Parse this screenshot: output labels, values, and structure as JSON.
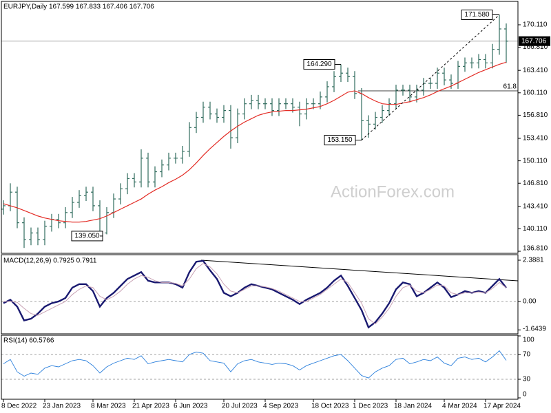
{
  "chart_data": [
    {
      "type": "ohlc",
      "title": "EURJPY,Daily  167.599 167.833 167.406 167.706",
      "watermark": "ActionForex.com",
      "color": "#2f6b5c",
      "categories": [
        "8 Dec 2022",
        null,
        null,
        null,
        null,
        null,
        "23 Jan 2023",
        null,
        null,
        null,
        null,
        null,
        null,
        "8 Mar 2023",
        null,
        null,
        null,
        null,
        null,
        "21 Apr 2023",
        null,
        null,
        null,
        null,
        null,
        "6 Jun 2023",
        null,
        null,
        null,
        null,
        null,
        null,
        "20 Jul 2023",
        null,
        null,
        null,
        null,
        null,
        "4 Sep 2023",
        null,
        null,
        null,
        null,
        null,
        null,
        "18 Oct 2023",
        null,
        null,
        null,
        null,
        null,
        "1 Dec 2023",
        null,
        null,
        null,
        null,
        null,
        "18 Jan 2024",
        null,
        null,
        null,
        null,
        null,
        null,
        "4 Mar 2024",
        null,
        null,
        null,
        null,
        null,
        "17 Apr 2024",
        null,
        null,
        null
      ],
      "open": [
        143,
        143.5,
        145.5,
        141,
        138.5,
        139.5,
        138.5,
        140.5,
        141.5,
        141,
        142.5,
        144,
        145,
        145.5,
        143.5,
        139.5,
        142.5,
        144.5,
        146,
        147.5,
        147,
        150.5,
        147,
        148.5,
        149.5,
        150.5,
        150.5,
        151.5,
        155,
        156.5,
        158,
        157,
        156.5,
        157.5,
        153.5,
        157,
        158.5,
        159,
        158.5,
        158.5,
        157.5,
        158.5,
        158.5,
        158,
        157,
        158.5,
        158.5,
        159.5,
        161,
        162.5,
        163,
        162.5,
        160,
        156,
        155.5,
        156.5,
        157.5,
        158.5,
        160.5,
        160.5,
        159.5,
        160.5,
        161.5,
        161.5,
        163,
        162,
        161.5,
        164,
        164.5,
        164.5,
        165,
        164.5,
        166.5,
        169.5
      ],
      "high": [
        144.3,
        146.8,
        146.3,
        141.8,
        140.3,
        140.3,
        141.3,
        142.3,
        142.3,
        143.3,
        144.8,
        145.8,
        146.3,
        146.3,
        144.3,
        143.3,
        145.3,
        146.8,
        148.3,
        148.3,
        151.8,
        151.3,
        149.3,
        150.3,
        151.3,
        151.3,
        152.3,
        155.8,
        157.3,
        158.8,
        158.8,
        157.8,
        158.3,
        158.3,
        157.8,
        159.3,
        159.8,
        159.8,
        159.3,
        159.3,
        159.3,
        159.3,
        159.3,
        158.8,
        159.3,
        159.3,
        160.3,
        161.8,
        163.3,
        164.29,
        163.8,
        163.3,
        160.8,
        156.8,
        157.3,
        158.3,
        159.3,
        161.3,
        161.3,
        161.3,
        161.3,
        162.3,
        162.3,
        163.8,
        163.8,
        162.8,
        164.8,
        165.3,
        165.3,
        165.8,
        165.8,
        167.3,
        171.58,
        170.3
      ],
      "low": [
        142.2,
        142.7,
        140.2,
        137.3,
        137.7,
        137.7,
        137.7,
        139.7,
        140.2,
        140.2,
        141.7,
        143.2,
        144.2,
        142.7,
        139.05,
        139.3,
        141.7,
        143.7,
        145.2,
        146.2,
        146.2,
        146.2,
        146.2,
        147.7,
        148.7,
        149.7,
        149.7,
        150.7,
        154.2,
        155.7,
        156.2,
        155.7,
        155.7,
        151.9,
        152.7,
        156.2,
        157.7,
        157.7,
        157.7,
        156.7,
        156.7,
        157.7,
        157.2,
        155.2,
        156.2,
        157.7,
        157.7,
        158.7,
        160.2,
        161.7,
        161.7,
        159.2,
        153.15,
        153.5,
        154.7,
        155.7,
        156.7,
        157.7,
        159.7,
        158.7,
        158.7,
        159.7,
        160.7,
        160.7,
        161.2,
        160.7,
        160.7,
        163.2,
        163.7,
        163.7,
        163.7,
        163.7,
        165.7,
        164.5
      ],
      "close": [
        143.5,
        145.5,
        141,
        138.5,
        139.5,
        138.5,
        140.5,
        141.5,
        141,
        142.5,
        144,
        145,
        145.5,
        143.5,
        139.5,
        142.5,
        144.5,
        146,
        147.5,
        147,
        150.5,
        147,
        148.5,
        149.5,
        150.5,
        150.5,
        151.5,
        155,
        156.5,
        158,
        157,
        156.5,
        157.5,
        153.5,
        157,
        158.5,
        159,
        158.5,
        158.5,
        157.5,
        158.5,
        158.5,
        158,
        157,
        158.5,
        158.5,
        159.5,
        161,
        162.5,
        163,
        162.5,
        160,
        156,
        155.5,
        156.5,
        157.5,
        158.5,
        160.5,
        160.5,
        159.5,
        160.5,
        161.5,
        161.5,
        163,
        162,
        161.5,
        164,
        164.5,
        164.5,
        165,
        164.5,
        166.5,
        169.5,
        167.706
      ],
      "ma": {
        "color": "#e32b24",
        "values": [
          143.8,
          143.5,
          143.2,
          142.8,
          142.4,
          142,
          141.7,
          141.5,
          141.3,
          141.2,
          141.1,
          141.1,
          141.2,
          141.4,
          141.6,
          142,
          142.5,
          143,
          143.5,
          144,
          144.5,
          145.2,
          145.8,
          146.3,
          146.9,
          147.4,
          148,
          148.8,
          149.8,
          150.9,
          151.9,
          152.8,
          153.7,
          154.5,
          155.2,
          155.8,
          156.3,
          156.8,
          157.1,
          157.3,
          157.4,
          157.5,
          157.5,
          157.6,
          157.7,
          157.9,
          158.1,
          158.5,
          159,
          159.6,
          160.2,
          160.4,
          160,
          159.4,
          158.9,
          158.5,
          158.4,
          158.4,
          158.6,
          158.8,
          159.1,
          159.4,
          159.8,
          160.3,
          160.7,
          161.1,
          161.6,
          162.1,
          162.6,
          163.1,
          163.5,
          163.9,
          164.3,
          164.6
        ]
      },
      "annotations": [
        {
          "value": 171.58,
          "label": "171.580"
        },
        {
          "value": 164.29,
          "label": "164.290"
        },
        {
          "value": 153.15,
          "label": "153.150"
        },
        {
          "value": 139.05,
          "label": "139.050"
        }
      ],
      "fib_level": {
        "label": "61.8",
        "price": 160.39
      },
      "ylim": [
        136.51,
        173.55
      ],
      "yticks": [
        {
          "value": 170.11,
          "label": "170.110"
        },
        {
          "value": 166.81,
          "label": "166.810"
        },
        {
          "value": 163.41,
          "label": "163.410"
        },
        {
          "value": 160.11,
          "label": "160.110"
        },
        {
          "value": 156.81,
          "label": "156.810"
        },
        {
          "value": 153.41,
          "label": "153.410"
        },
        {
          "value": 150.11,
          "label": "150.110"
        },
        {
          "value": 146.81,
          "label": "146.810"
        },
        {
          "value": 143.41,
          "label": "143.410"
        },
        {
          "value": 140.11,
          "label": "140.110"
        },
        {
          "value": 136.81,
          "label": "136.810"
        }
      ]
    },
    {
      "type": "macd",
      "title": "MACD(12,26,9)  0.7925 0.7911",
      "series": [
        {
          "color": "#191970",
          "values": [
            -0.1,
            0.1,
            -0.3,
            -1.1,
            -1.0,
            -0.7,
            -0.3,
            -0.1,
            0.0,
            0.2,
            0.8,
            1.0,
            1.0,
            0.6,
            -0.3,
            0.2,
            0.5,
            0.9,
            1.3,
            1.5,
            1.7,
            1.2,
            1.1,
            1.1,
            1.1,
            1.0,
            0.8,
            1.7,
            2.3,
            2.35,
            1.8,
            1.3,
            0.5,
            0.3,
            0.5,
            0.8,
            1.0,
            0.9,
            0.8,
            0.7,
            0.5,
            0.3,
            0.1,
            -0.15,
            0.1,
            0.3,
            0.5,
            0.8,
            1.2,
            1.5,
            0.9,
            0.2,
            -0.5,
            -1.5,
            -1.2,
            -0.7,
            -0.1,
            0.7,
            1.1,
            1.0,
            0.3,
            0.5,
            0.8,
            1.1,
            0.8,
            0.25,
            0.4,
            0.6,
            0.5,
            0.6,
            0.5,
            0.9,
            1.3,
            0.7925
          ]
        },
        {
          "color": "#c9a3b5",
          "values": [
            0.0,
            0.0,
            -0.05,
            -0.4,
            -0.7,
            -0.8,
            -0.6,
            -0.4,
            -0.2,
            0.0,
            0.4,
            0.7,
            0.9,
            0.8,
            0.3,
            0.1,
            0.3,
            0.6,
            1.0,
            1.3,
            1.5,
            1.4,
            1.2,
            1.1,
            1.1,
            1.05,
            0.9,
            1.3,
            1.9,
            2.2,
            2.0,
            1.6,
            1.0,
            0.6,
            0.5,
            0.7,
            0.9,
            0.9,
            0.85,
            0.75,
            0.6,
            0.4,
            0.2,
            0.0,
            0.0,
            0.2,
            0.4,
            0.7,
            1.0,
            1.3,
            1.1,
            0.5,
            -0.1,
            -1.0,
            -1.3,
            -0.9,
            -0.4,
            0.3,
            0.8,
            0.95,
            0.6,
            0.5,
            0.7,
            0.95,
            0.9,
            0.5,
            0.4,
            0.5,
            0.5,
            0.55,
            0.5,
            0.75,
            1.1,
            0.7911
          ]
        }
      ],
      "ylim": [
        -1.873,
        2.707
      ],
      "yticks": [
        2.3881,
        {
          "value": 0,
          "label": "0.00"
        },
        -1.6439
      ]
    },
    {
      "type": "rsi",
      "title": "RSI(14) 60.5766",
      "color": "#2a7fdc",
      "values": [
        55,
        62,
        42,
        35,
        40,
        38,
        48,
        52,
        50,
        55,
        60,
        62,
        60,
        52,
        40,
        50,
        56,
        60,
        64,
        62,
        68,
        55,
        58,
        60,
        62,
        60,
        58,
        70,
        74,
        72,
        60,
        58,
        56,
        42,
        55,
        60,
        62,
        58,
        56,
        54,
        56,
        55,
        52,
        45,
        52,
        56,
        60,
        64,
        68,
        70,
        60,
        48,
        36,
        32,
        42,
        48,
        52,
        62,
        64,
        55,
        58,
        62,
        60,
        66,
        56,
        52,
        64,
        66,
        62,
        64,
        58,
        66,
        76,
        60.5766
      ],
      "ylim": [
        -2.2,
        101.1
      ],
      "yticks": [
        100,
        70,
        30,
        0
      ]
    }
  ]
}
